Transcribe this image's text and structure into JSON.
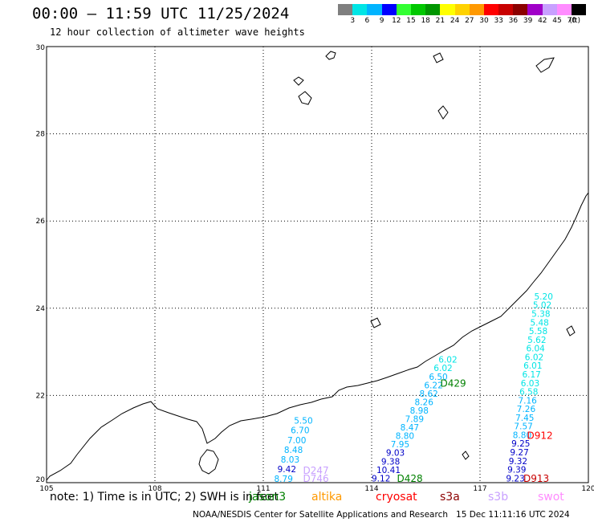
{
  "title": "00:00 – 11:59 UTC 11/25/2024",
  "subtitle": "12 hour collection of altimeter wave heights",
  "colorbar": {
    "labels": [
      "3",
      "6",
      "9",
      "12",
      "15",
      "18",
      "21",
      "24",
      "27",
      "30",
      "33",
      "36",
      "39",
      "42",
      "45",
      "70",
      "(ft)"
    ],
    "colors": [
      "#7f7f7f",
      "#00e5e5",
      "#00b4ff",
      "#0000ff",
      "#33ff33",
      "#00c800",
      "#009600",
      "#ffff00",
      "#ffd200",
      "#ff9900",
      "#ff0000",
      "#c80000",
      "#8b0000",
      "#a000c8",
      "#c8a0ff",
      "#ff8cff",
      "#000000"
    ]
  },
  "map": {
    "lon_ticks": [
      "105",
      "108",
      "111",
      "114",
      "117",
      "120"
    ],
    "lat_ticks": [
      "30",
      "28",
      "26",
      "24",
      "22",
      "20"
    ],
    "track_labels": [
      {
        "text": "D429",
        "lon": 115.9,
        "lat": 22.2,
        "color": "#008000"
      },
      {
        "text": "D428",
        "lon": 114.7,
        "lat": 20.02,
        "color": "#008000"
      },
      {
        "text": "D912",
        "lon": 118.3,
        "lat": 21.0,
        "color": "#ff0000"
      },
      {
        "text": "D913",
        "lon": 118.2,
        "lat": 20.02,
        "color": "#c80000"
      },
      {
        "text": "D247",
        "lon": 112.1,
        "lat": 20.2,
        "color": "#c8a0ff"
      },
      {
        "text": "D746",
        "lon": 112.1,
        "lat": 20.02,
        "color": "#c8a0ff"
      }
    ],
    "track_a": [
      {
        "v": "5.50",
        "color": "#00b4ff"
      },
      {
        "v": "6.70",
        "color": "#00b4ff"
      },
      {
        "v": "7.00",
        "color": "#00b4ff"
      },
      {
        "v": "8.48",
        "color": "#00b4ff"
      },
      {
        "v": "8.03",
        "color": "#00b4ff"
      },
      {
        "v": "9.42",
        "color": "#0000c8"
      },
      {
        "v": "8.79",
        "color": "#00b4ff"
      }
    ],
    "track_b": [
      {
        "v": "6.02",
        "color": "#00e5e5"
      },
      {
        "v": "6.02",
        "color": "#00e5e5"
      },
      {
        "v": "6.50",
        "color": "#00b4ff"
      },
      {
        "v": "6.22",
        "color": "#00b4ff"
      },
      {
        "v": "8.62",
        "color": "#00b4ff"
      },
      {
        "v": "8.26",
        "color": "#00b4ff"
      },
      {
        "v": "8.98",
        "color": "#00b4ff"
      },
      {
        "v": "7.89",
        "color": "#00b4ff"
      },
      {
        "v": "8.47",
        "color": "#00b4ff"
      },
      {
        "v": "8.80",
        "color": "#00b4ff"
      },
      {
        "v": "7.95",
        "color": "#00b4ff"
      },
      {
        "v": "9.03",
        "color": "#0000c8"
      },
      {
        "v": "9.38",
        "color": "#0000c8"
      },
      {
        "v": "10.41",
        "color": "#0000c8"
      },
      {
        "v": "9.12",
        "color": "#0000c8"
      }
    ],
    "track_c_top": [
      {
        "v": "5.20",
        "color": "#00e5e5"
      },
      {
        "v": "5.02",
        "color": "#00e5e5"
      },
      {
        "v": "5.38",
        "color": "#00e5e5"
      },
      {
        "v": "5.48",
        "color": "#00e5e5"
      },
      {
        "v": "5.58",
        "color": "#00e5e5"
      },
      {
        "v": "5.62",
        "color": "#00e5e5"
      },
      {
        "v": "6.04",
        "color": "#00e5e5"
      },
      {
        "v": "6.02",
        "color": "#00e5e5"
      },
      {
        "v": "6.01",
        "color": "#00e5e5"
      },
      {
        "v": "6.17",
        "color": "#00e5e5"
      },
      {
        "v": "6.03",
        "color": "#00e5e5"
      },
      {
        "v": "6.58",
        "color": "#00e5e5"
      },
      {
        "v": "7.16",
        "color": "#00b4ff"
      },
      {
        "v": "7.26",
        "color": "#00b4ff"
      },
      {
        "v": "7.45",
        "color": "#00b4ff"
      },
      {
        "v": "7.57",
        "color": "#00b4ff"
      },
      {
        "v": "8.80",
        "color": "#00b4ff"
      },
      {
        "v": "9.25",
        "color": "#0000c8"
      },
      {
        "v": "9.27",
        "color": "#0000c8"
      },
      {
        "v": "9.32",
        "color": "#0000c8"
      },
      {
        "v": "9.39",
        "color": "#0000c8"
      },
      {
        "v": "9.23",
        "color": "#0000c8"
      }
    ]
  },
  "legend": {
    "note": "note: 1) Time is in UTC; 2) SWH is in feet",
    "sats": [
      {
        "name": "jason3",
        "color": "#008000"
      },
      {
        "name": "altika",
        "color": "#ff9900"
      },
      {
        "name": "cryosat",
        "color": "#ff0000"
      },
      {
        "name": "s3a",
        "color": "#8b0000"
      },
      {
        "name": "s3b",
        "color": "#c8a0ff"
      },
      {
        "name": "swot",
        "color": "#ff8cff"
      }
    ]
  },
  "credits": "NOAA/NESDIS Center for Satellite Applications and Research   15 Dec 11:11:16 UTC 2024"
}
